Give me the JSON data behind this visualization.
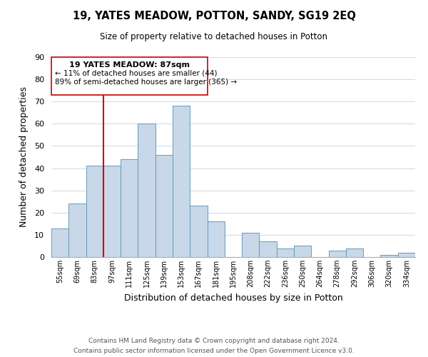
{
  "title": "19, YATES MEADOW, POTTON, SANDY, SG19 2EQ",
  "subtitle": "Size of property relative to detached houses in Potton",
  "xlabel": "Distribution of detached houses by size in Potton",
  "ylabel": "Number of detached properties",
  "footer_line1": "Contains HM Land Registry data © Crown copyright and database right 2024.",
  "footer_line2": "Contains public sector information licensed under the Open Government Licence v3.0.",
  "bar_labels": [
    "55sqm",
    "69sqm",
    "83sqm",
    "97sqm",
    "111sqm",
    "125sqm",
    "139sqm",
    "153sqm",
    "167sqm",
    "181sqm",
    "195sqm",
    "208sqm",
    "222sqm",
    "236sqm",
    "250sqm",
    "264sqm",
    "278sqm",
    "292sqm",
    "306sqm",
    "320sqm",
    "334sqm"
  ],
  "bar_values": [
    13,
    24,
    41,
    41,
    44,
    60,
    46,
    68,
    23,
    16,
    0,
    11,
    7,
    4,
    5,
    0,
    3,
    4,
    0,
    1,
    2
  ],
  "bar_color": "#c8d8e8",
  "bar_edgecolor": "#6699bb",
  "vline_color": "#cc0000",
  "annotation_title": "19 YATES MEADOW: 87sqm",
  "annotation_line2": "← 11% of detached houses are smaller (44)",
  "annotation_line3": "89% of semi-detached houses are larger (365) →",
  "annotation_box_edgecolor": "#cc0000",
  "annotation_box_facecolor": "#ffffff",
  "ylim": [
    0,
    90
  ],
  "yticks": [
    0,
    10,
    20,
    30,
    40,
    50,
    60,
    70,
    80,
    90
  ],
  "background_color": "#ffffff",
  "grid_color": "#ccddee"
}
